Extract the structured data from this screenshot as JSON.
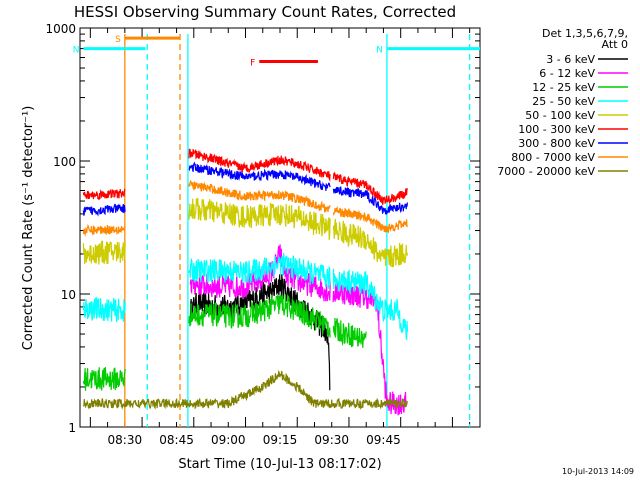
{
  "chart_data": {
    "type": "line",
    "title": "HESSI Observing Summary Count Rates, Corrected",
    "xlabel": "Start Time (10-Jul-13 08:17:02)",
    "ylabel": "Corrected Count Rate (s⁻¹ detector⁻¹)",
    "yscale": "log",
    "ylim": [
      1,
      1000
    ],
    "xlim_min": [
      517,
      633
    ],
    "xticks": [
      {
        "label": "08:30",
        "min": 530
      },
      {
        "label": "08:45",
        "min": 545
      },
      {
        "label": "09:00",
        "min": 560
      },
      {
        "label": "09:15",
        "min": 575
      },
      {
        "label": "09:30",
        "min": 590
      },
      {
        "label": "09:45",
        "min": 605
      }
    ],
    "yticks": [
      {
        "label": "1",
        "v": 1
      },
      {
        "label": "10",
        "v": 10
      },
      {
        "label": "100",
        "v": 100
      },
      {
        "label": "1000",
        "v": 1000
      }
    ],
    "legend_header": [
      "Det 1,3,5,6,7,9,",
      "Att 0"
    ],
    "series": [
      {
        "name": "3 - 6 keV",
        "color": "#000000",
        "x": [
          549,
          551,
          555,
          560,
          565,
          570,
          573,
          575,
          577,
          580,
          583,
          586,
          588,
          589,
          589.5
        ],
        "y": [
          7.5,
          8.5,
          8.2,
          8,
          8.5,
          10,
          10.5,
          12,
          10.5,
          8.5,
          7.5,
          6,
          5.5,
          4,
          2
        ]
      },
      {
        "name": "6 - 12 keV",
        "color": "#ff00ff",
        "x": [
          549,
          555,
          560,
          565,
          570,
          573,
          575,
          576,
          577,
          580,
          585,
          589,
          590,
          592,
          595,
          600,
          603,
          606,
          609,
          612
        ],
        "y": [
          12,
          11.5,
          11.3,
          11.5,
          13,
          15,
          20,
          16,
          14,
          12.5,
          11.5,
          10.5,
          10,
          10.5,
          10,
          9.5,
          9,
          1.5,
          1.5,
          1.5
        ]
      },
      {
        "name": "12 - 25 keV",
        "color": "#00cc00",
        "x": [
          518,
          530,
          549,
          555,
          560,
          565,
          570,
          575,
          580,
          585,
          590,
          595,
          600
        ],
        "y": [
          2.3,
          2.3,
          7,
          7,
          6.8,
          6.8,
          7.5,
          8.5,
          7.5,
          6.5,
          5.5,
          5,
          4.5
        ]
      },
      {
        "name": "25 - 50 keV",
        "color": "#00ffff",
        "x": [
          518,
          530,
          549,
          555,
          560,
          565,
          570,
          575,
          580,
          585,
          590,
          595,
          600,
          605,
          609,
          612
        ],
        "y": [
          7.8,
          7.5,
          15,
          15,
          15,
          14.5,
          15.5,
          17,
          15.5,
          14,
          13,
          12.5,
          12,
          7.5,
          7.5,
          5
        ]
      },
      {
        "name": "50 - 100 keV",
        "color": "#cccc00",
        "x": [
          518,
          530,
          549,
          555,
          560,
          565,
          570,
          575,
          580,
          585,
          590,
          595,
          600,
          605,
          610,
          612
        ],
        "y": [
          20,
          21,
          44,
          42,
          40,
          38,
          39,
          40,
          38,
          34,
          31,
          28,
          26,
          18,
          20,
          21
        ]
      },
      {
        "name": "100 - 300 keV",
        "color": "#ff0000",
        "x": [
          518,
          530,
          549,
          555,
          560,
          565,
          570,
          575,
          580,
          585,
          590,
          595,
          600,
          605,
          610,
          612
        ],
        "y": [
          55,
          57,
          115,
          105,
          95,
          88,
          95,
          102,
          95,
          85,
          76,
          70,
          66,
          50,
          55,
          58
        ]
      },
      {
        "name": "300 - 800 keV",
        "color": "#0000ff",
        "x": [
          518,
          530,
          549,
          555,
          560,
          565,
          570,
          575,
          580,
          585,
          590,
          595,
          600,
          605,
          610,
          612
        ],
        "y": [
          42,
          44,
          90,
          85,
          80,
          76,
          78,
          80,
          75,
          68,
          62,
          58,
          56,
          43,
          45,
          46
        ]
      },
      {
        "name": "800 - 7000 keV",
        "color": "#ff8800",
        "x": [
          518,
          530,
          549,
          555,
          560,
          565,
          570,
          575,
          580,
          585,
          590,
          595,
          600,
          605,
          610,
          612
        ],
        "y": [
          30,
          31,
          66,
          62,
          58,
          54,
          55,
          56,
          52,
          47,
          43,
          40,
          38,
          31,
          33,
          34
        ]
      },
      {
        "name": "7000 - 20000 keV",
        "color": "#808000",
        "x": [
          518,
          530,
          549,
          560,
          570,
          575,
          580,
          585,
          590,
          600,
          610,
          612
        ],
        "y": [
          1.5,
          1.5,
          1.5,
          1.5,
          2,
          2.5,
          2,
          1.5,
          1.5,
          1.5,
          1.5,
          1.5
        ]
      }
    ],
    "flag_bars": [
      {
        "label": "S",
        "color": "#ff8800",
        "x1": 530,
        "x2": 546,
        "y": 840
      },
      {
        "label": "N",
        "color": "#00ffff",
        "x1": 518,
        "x2": 536,
        "y": 700
      },
      {
        "label": "N",
        "color": "#00ffff",
        "x1": 606,
        "x2": 633,
        "y": 700
      },
      {
        "label": "F",
        "color": "#ff0000",
        "x1": 569,
        "x2": 586,
        "y": 560
      }
    ],
    "vlines": [
      {
        "color": "#ff8800",
        "min": 530,
        "dash": false
      },
      {
        "color": "#00ffff",
        "min": 536.5,
        "dash": true
      },
      {
        "color": "#ff8800",
        "min": 546,
        "dash": true
      },
      {
        "color": "#00ffff",
        "min": 548.3,
        "dash": false
      },
      {
        "color": "#00ffff",
        "min": 606,
        "dash": false
      },
      {
        "color": "#00ffff",
        "min": 630,
        "dash": true
      }
    ],
    "timestamp": "10-Jul-2013 14:09"
  }
}
